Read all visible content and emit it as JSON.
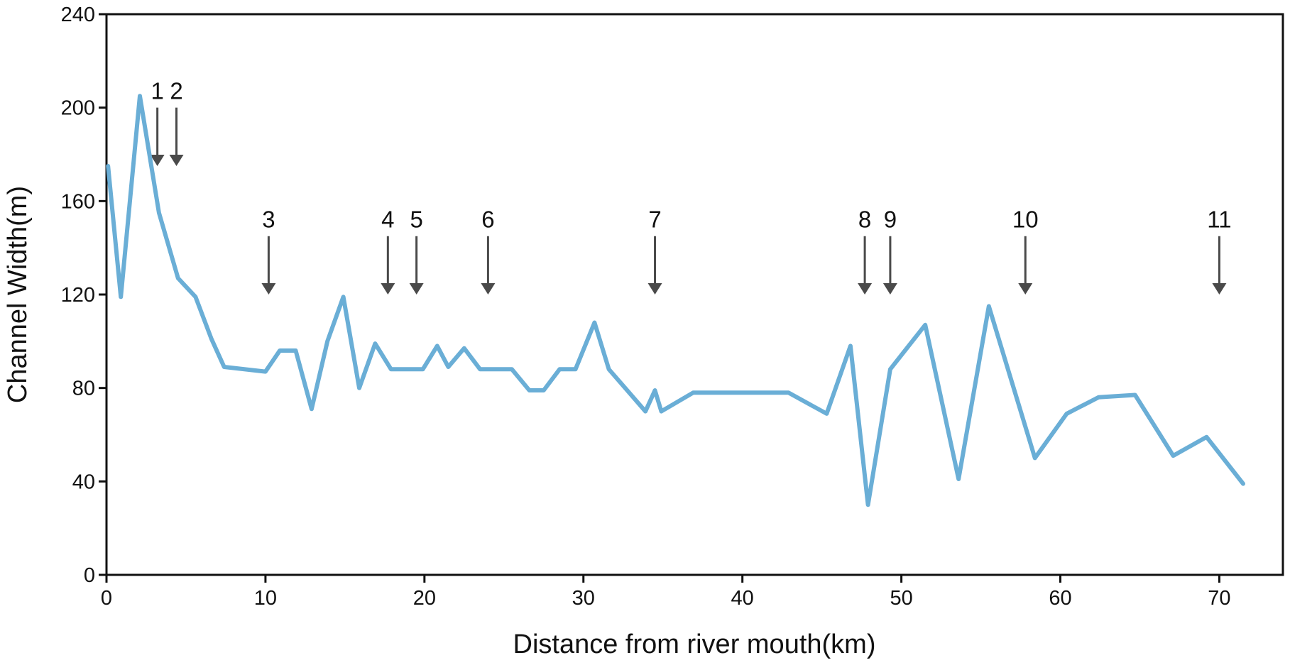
{
  "chart_data": {
    "type": "line",
    "xlabel": "Distance from river mouth(km)",
    "ylabel": "Channel Width(m)",
    "xlim": [
      0,
      74
    ],
    "ylim": [
      0,
      240
    ],
    "xticks": [
      0,
      10,
      20,
      30,
      40,
      50,
      60,
      70
    ],
    "yticks": [
      0,
      40,
      80,
      120,
      160,
      200,
      240
    ],
    "grid": false,
    "legend": "none",
    "series_color": "#6aaed6",
    "arrow_color": "#4a4a4a",
    "series": [
      {
        "x": [
          0.1,
          0.9,
          2.1,
          3.3,
          4.5,
          5.6,
          6.6,
          7.4,
          10.0,
          10.9,
          11.9,
          12.9,
          13.9,
          14.9,
          15.9,
          16.9,
          17.9,
          19.9,
          20.8,
          21.5,
          22.5,
          23.5,
          25.5,
          26.6,
          27.5,
          28.5,
          29.5,
          30.7,
          31.6,
          33.9,
          34.5,
          34.9,
          36.9,
          40.9,
          42.9,
          45.3,
          46.8,
          47.9,
          49.3,
          51.5,
          53.6,
          55.5,
          58.4,
          60.4,
          62.4,
          64.7,
          67.1,
          69.2,
          71.5
        ],
        "y": [
          175,
          119,
          205,
          155,
          127,
          119,
          101,
          89,
          87,
          96,
          96,
          71,
          100,
          119,
          80,
          99,
          88,
          88,
          98,
          89,
          97,
          88,
          88,
          79,
          79,
          88,
          88,
          108,
          88,
          70,
          79,
          70,
          78,
          78,
          78,
          69,
          98,
          30,
          88,
          107,
          41,
          115,
          50,
          69,
          76,
          77,
          51,
          59,
          39
        ]
      }
    ],
    "annotations": [
      {
        "label": "1",
        "x": 3.2,
        "top": 200,
        "bottom": 175
      },
      {
        "label": "2",
        "x": 4.4,
        "top": 200,
        "bottom": 175
      },
      {
        "label": "3",
        "x": 10.2,
        "top": 145,
        "bottom": 120
      },
      {
        "label": "4",
        "x": 17.7,
        "top": 145,
        "bottom": 120
      },
      {
        "label": "5",
        "x": 19.5,
        "top": 145,
        "bottom": 120
      },
      {
        "label": "6",
        "x": 24.0,
        "top": 145,
        "bottom": 120
      },
      {
        "label": "7",
        "x": 34.5,
        "top": 145,
        "bottom": 120
      },
      {
        "label": "8",
        "x": 47.7,
        "top": 145,
        "bottom": 120
      },
      {
        "label": "9",
        "x": 49.3,
        "top": 145,
        "bottom": 120
      },
      {
        "label": "10",
        "x": 57.8,
        "top": 145,
        "bottom": 120
      },
      {
        "label": "11",
        "x": 70.0,
        "top": 145,
        "bottom": 120
      }
    ]
  }
}
